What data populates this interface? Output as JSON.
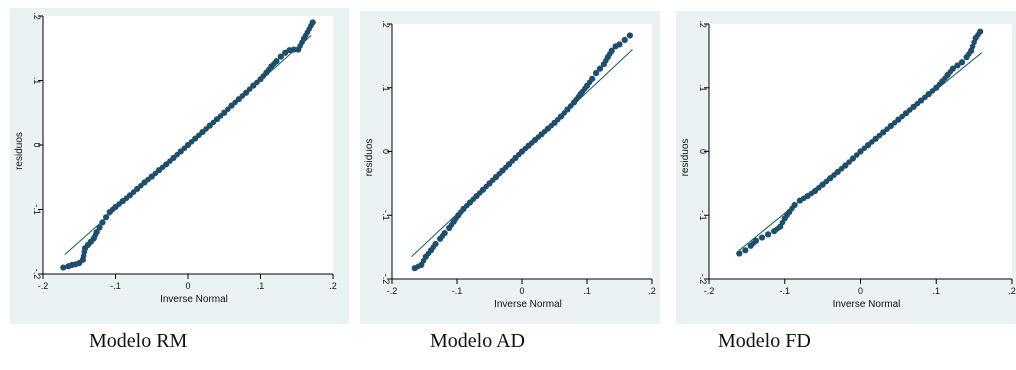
{
  "chart_data": [
    {
      "type": "scatter",
      "caption": "Modelo RM",
      "xlabel": "Inverse Normal",
      "ylabel": "residuos",
      "xlim": [
        -0.2,
        0.2
      ],
      "ylim": [
        -0.2,
        0.2
      ],
      "xticks": [
        "-.2",
        "-.1",
        "0",
        ".1",
        ".2"
      ],
      "yticks": [
        "-.2",
        "-.1",
        "0",
        ".1",
        ".2"
      ],
      "reference_line": [
        [
          -0.17,
          -0.17
        ],
        [
          0.17,
          0.17
        ]
      ],
      "points": [
        [
          -0.172,
          -0.19
        ],
        [
          -0.165,
          -0.188
        ],
        [
          -0.16,
          -0.186
        ],
        [
          -0.155,
          -0.185
        ],
        [
          -0.15,
          -0.183
        ],
        [
          -0.145,
          -0.178
        ],
        [
          -0.142,
          -0.16
        ],
        [
          -0.138,
          -0.155
        ],
        [
          -0.134,
          -0.15
        ],
        [
          -0.13,
          -0.145
        ],
        [
          -0.126,
          -0.135
        ],
        [
          -0.122,
          -0.128
        ],
        [
          -0.118,
          -0.12
        ],
        [
          -0.113,
          -0.112
        ],
        [
          -0.108,
          -0.104
        ],
        [
          -0.1,
          -0.096
        ],
        [
          -0.09,
          -0.087
        ],
        [
          -0.08,
          -0.078
        ],
        [
          -0.07,
          -0.068
        ],
        [
          -0.06,
          -0.058
        ],
        [
          -0.05,
          -0.049
        ],
        [
          -0.04,
          -0.039
        ],
        [
          -0.03,
          -0.03
        ],
        [
          -0.02,
          -0.02
        ],
        [
          -0.01,
          -0.01
        ],
        [
          0.0,
          0.0
        ],
        [
          0.01,
          0.01
        ],
        [
          0.02,
          0.02
        ],
        [
          0.03,
          0.03
        ],
        [
          0.04,
          0.04
        ],
        [
          0.05,
          0.05
        ],
        [
          0.06,
          0.061
        ],
        [
          0.07,
          0.071
        ],
        [
          0.08,
          0.081
        ],
        [
          0.09,
          0.092
        ],
        [
          0.1,
          0.102
        ],
        [
          0.108,
          0.112
        ],
        [
          0.115,
          0.122
        ],
        [
          0.122,
          0.13
        ],
        [
          0.128,
          0.137
        ],
        [
          0.134,
          0.143
        ],
        [
          0.14,
          0.147
        ],
        [
          0.146,
          0.148
        ],
        [
          0.152,
          0.148
        ],
        [
          0.16,
          0.165
        ],
        [
          0.172,
          0.19
        ]
      ]
    },
    {
      "type": "scatter",
      "caption": "Modelo AD",
      "xlabel": "Inverse Normal",
      "ylabel": "residuos",
      "xlim": [
        -0.2,
        0.2
      ],
      "ylim": [
        -0.2,
        0.2
      ],
      "xticks": [
        "-.2",
        "-.1",
        "0",
        ".1",
        ".2"
      ],
      "yticks": [
        "-.2",
        "-.1",
        "0",
        ".1",
        ".2"
      ],
      "reference_line": [
        [
          -0.17,
          -0.165
        ],
        [
          0.17,
          0.16
        ]
      ],
      "points": [
        [
          -0.165,
          -0.183
        ],
        [
          -0.155,
          -0.178
        ],
        [
          -0.148,
          -0.165
        ],
        [
          -0.14,
          -0.155
        ],
        [
          -0.133,
          -0.145
        ],
        [
          -0.126,
          -0.137
        ],
        [
          -0.119,
          -0.128
        ],
        [
          -0.112,
          -0.12
        ],
        [
          -0.105,
          -0.11
        ],
        [
          -0.098,
          -0.1
        ],
        [
          -0.09,
          -0.09
        ],
        [
          -0.08,
          -0.08
        ],
        [
          -0.07,
          -0.07
        ],
        [
          -0.06,
          -0.06
        ],
        [
          -0.05,
          -0.05
        ],
        [
          -0.04,
          -0.04
        ],
        [
          -0.03,
          -0.03
        ],
        [
          -0.02,
          -0.02
        ],
        [
          -0.01,
          -0.01
        ],
        [
          0.0,
          0.0
        ],
        [
          0.01,
          0.009
        ],
        [
          0.02,
          0.018
        ],
        [
          0.03,
          0.027
        ],
        [
          0.04,
          0.036
        ],
        [
          0.05,
          0.045
        ],
        [
          0.06,
          0.055
        ],
        [
          0.07,
          0.066
        ],
        [
          0.08,
          0.077
        ],
        [
          0.09,
          0.09
        ],
        [
          0.1,
          0.103
        ],
        [
          0.108,
          0.114
        ],
        [
          0.114,
          0.123
        ],
        [
          0.12,
          0.13
        ],
        [
          0.126,
          0.137
        ],
        [
          0.132,
          0.148
        ],
        [
          0.138,
          0.158
        ],
        [
          0.144,
          0.165
        ],
        [
          0.15,
          0.168
        ],
        [
          0.158,
          0.175
        ],
        [
          0.166,
          0.182
        ]
      ]
    },
    {
      "type": "scatter",
      "caption": "Modelo FD",
      "xlabel": "Inverse Normal",
      "ylabel": "residuos",
      "xlim": [
        -0.2,
        0.2
      ],
      "ylim": [
        -0.2,
        0.2
      ],
      "xticks": [
        "-.2",
        "-.1",
        "0",
        ".1",
        ".2"
      ],
      "yticks": [
        "-.2",
        "-.1",
        "0",
        ".1",
        ".2"
      ],
      "reference_line": [
        [
          -0.16,
          -0.155
        ],
        [
          0.16,
          0.155
        ]
      ],
      "points": [
        [
          -0.16,
          -0.16
        ],
        [
          -0.152,
          -0.155
        ],
        [
          -0.145,
          -0.148
        ],
        [
          -0.138,
          -0.14
        ],
        [
          -0.13,
          -0.135
        ],
        [
          -0.122,
          -0.13
        ],
        [
          -0.114,
          -0.125
        ],
        [
          -0.106,
          -0.118
        ],
        [
          -0.1,
          -0.105
        ],
        [
          -0.094,
          -0.095
        ],
        [
          -0.087,
          -0.084
        ],
        [
          -0.08,
          -0.077
        ],
        [
          -0.07,
          -0.07
        ],
        [
          -0.06,
          -0.062
        ],
        [
          -0.05,
          -0.052
        ],
        [
          -0.04,
          -0.042
        ],
        [
          -0.03,
          -0.032
        ],
        [
          -0.02,
          -0.022
        ],
        [
          -0.01,
          -0.011
        ],
        [
          0.0,
          0.0
        ],
        [
          0.01,
          0.01
        ],
        [
          0.02,
          0.02
        ],
        [
          0.03,
          0.03
        ],
        [
          0.04,
          0.04
        ],
        [
          0.05,
          0.05
        ],
        [
          0.06,
          0.06
        ],
        [
          0.07,
          0.07
        ],
        [
          0.08,
          0.08
        ],
        [
          0.09,
          0.09
        ],
        [
          0.1,
          0.1
        ],
        [
          0.108,
          0.11
        ],
        [
          0.115,
          0.12
        ],
        [
          0.122,
          0.13
        ],
        [
          0.128,
          0.135
        ],
        [
          0.134,
          0.14
        ],
        [
          0.14,
          0.148
        ],
        [
          0.146,
          0.158
        ],
        [
          0.152,
          0.178
        ],
        [
          0.158,
          0.188
        ]
      ]
    }
  ]
}
